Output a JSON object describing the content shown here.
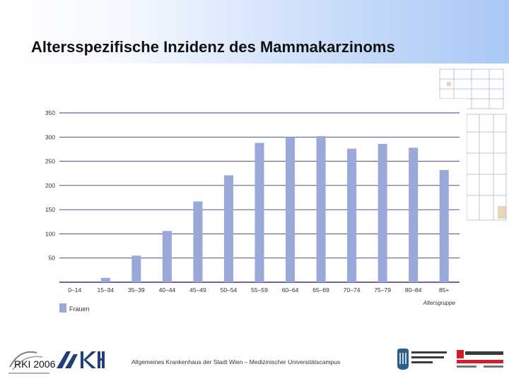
{
  "slide": {
    "title": "Altersspezifische Inzidenz des Mammakarzinoms"
  },
  "chart_data": {
    "type": "bar",
    "categories": [
      "0–14",
      "15–34",
      "35–39",
      "40–44",
      "45–49",
      "50–54",
      "55–59",
      "60–64",
      "65–69",
      "70–74",
      "75–79",
      "80–84",
      "85+"
    ],
    "series": [
      {
        "name": "Frauen",
        "values": [
          0,
          9,
          55,
          106,
          167,
          221,
          288,
          300,
          302,
          276,
          286,
          278,
          232
        ]
      }
    ],
    "xlabel": "Altersgruppe",
    "ylabel": "",
    "ylim": [
      0,
      350
    ],
    "yticks": [
      50,
      100,
      150,
      200,
      250,
      300,
      350
    ],
    "grid": true,
    "legend_position": "bottom-left",
    "bar_color": "#9aa9d8",
    "grid_color": "#2b3a8c"
  },
  "footer": {
    "source": "RKI 2006",
    "institution": "Allgemeines Krankenhaus der Stadt Wien – Medizinischer Universitätscampus",
    "logo_akh_tagline": "Die menschliche Größe",
    "logo_meduni": "MEDIZINISCHE UNIVERSITÄT WIEN",
    "logo_quality": "qualityaustria",
    "logo_quality_sub": "SYSTEM CERTIFIED"
  }
}
